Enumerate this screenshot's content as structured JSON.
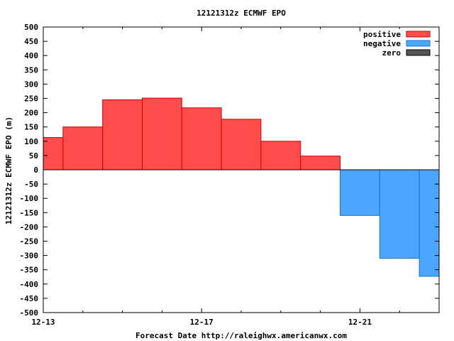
{
  "chart_data": {
    "type": "bar",
    "title": "12121312z ECMWF EPO",
    "xlabel": "Forecast Date http://raleighwx.americanwx.com",
    "ylabel": "12121312z ECMWF EPO (m)",
    "ylim": [
      -500,
      500
    ],
    "yticks": [
      500,
      450,
      400,
      350,
      300,
      250,
      200,
      150,
      100,
      50,
      0,
      -50,
      -100,
      -150,
      -200,
      -250,
      -300,
      -350,
      -400,
      -450,
      -500
    ],
    "ytick_labels": [
      "500",
      "450",
      "400",
      "350",
      "300",
      "250",
      "200",
      "150",
      "100",
      "50",
      "0",
      "-50",
      "-100",
      "-150",
      "-200",
      "-250",
      "-300",
      "-350",
      "-400",
      "-450",
      "-500"
    ],
    "xlim_days": [
      0,
      10
    ],
    "xticks": [
      {
        "day": 0,
        "label": "12-13"
      },
      {
        "day": 4,
        "label": "12-17"
      },
      {
        "day": 8,
        "label": "12-21"
      }
    ],
    "minor_xticks_days": [
      1,
      2,
      3,
      5,
      6,
      7,
      9
    ],
    "bars": [
      {
        "start_day": 0.0,
        "end_day": 0.5,
        "value": 113
      },
      {
        "start_day": 0.5,
        "end_day": 1.5,
        "value": 150
      },
      {
        "start_day": 1.5,
        "end_day": 2.5,
        "value": 245
      },
      {
        "start_day": 2.5,
        "end_day": 3.5,
        "value": 251
      },
      {
        "start_day": 3.5,
        "end_day": 4.5,
        "value": 217
      },
      {
        "start_day": 4.5,
        "end_day": 5.5,
        "value": 177
      },
      {
        "start_day": 5.5,
        "end_day": 6.5,
        "value": 100
      },
      {
        "start_day": 6.5,
        "end_day": 7.5,
        "value": 48
      },
      {
        "start_day": 7.5,
        "end_day": 8.5,
        "value": -160
      },
      {
        "start_day": 8.5,
        "end_day": 9.5,
        "value": -310
      },
      {
        "start_day": 9.5,
        "end_day": 10.0,
        "value": -373
      }
    ],
    "legend": {
      "position": "top-right",
      "entries": [
        {
          "label": "positive",
          "color": "#ff4c4c",
          "stroke": "#cc0000"
        },
        {
          "label": "negative",
          "color": "#4ca6ff",
          "stroke": "#1a73c8"
        },
        {
          "label": "zero",
          "color": "#555555",
          "stroke": "#000000"
        }
      ]
    },
    "colors": {
      "positive_fill": "#ff4c4c",
      "positive_stroke": "#cc0000",
      "negative_fill": "#4ca6ff",
      "negative_stroke": "#1a73c8",
      "zero_line": "#000000"
    }
  }
}
